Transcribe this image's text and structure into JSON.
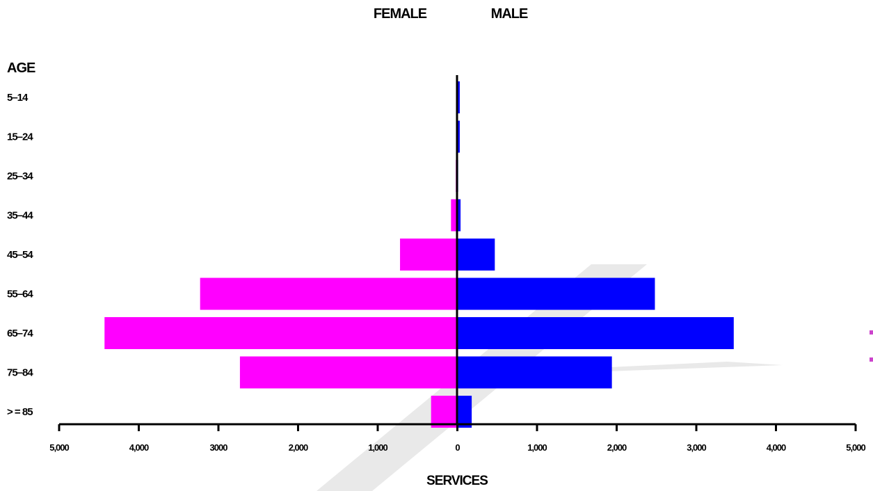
{
  "chart_data": {
    "type": "bar",
    "orientation": "horizontal",
    "layout": "population-pyramid",
    "female_label": "FEMALE",
    "male_label": "MALE",
    "category_axis_label": "AGE",
    "xlabel": "SERVICES",
    "categories": [
      "5–14",
      "15–24",
      "25–34",
      "35–44",
      "45–54",
      "55–64",
      "65–74",
      "75–84",
      "> = 85"
    ],
    "series": [
      {
        "name": "FEMALE",
        "color": "#ff00ff",
        "values": [
          10,
          10,
          20,
          80,
          720,
          3230,
          4430,
          2730,
          330
        ]
      },
      {
        "name": "MALE",
        "color": "#0000ff",
        "values": [
          30,
          30,
          10,
          40,
          470,
          2480,
          3470,
          1940,
          180
        ]
      }
    ],
    "xlim": [
      -5000,
      5000
    ],
    "ticks": [
      -5000,
      -4000,
      -3000,
      -2000,
      -1000,
      0,
      1000,
      2000,
      3000,
      4000,
      5000
    ],
    "tick_labels": [
      "5,000",
      "4,000",
      "3000",
      "2,000",
      "1,000",
      "0",
      "1,000",
      "2,000",
      "3,000",
      "4,000",
      "5,000"
    ],
    "grid": false,
    "watermark_color": "#e9e9e9",
    "legend_marker_color": "#cc44cc"
  }
}
